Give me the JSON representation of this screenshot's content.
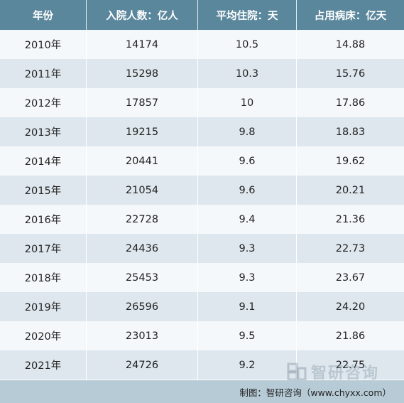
{
  "header": {
    "year": "年份",
    "admissions": "入院人数：亿人",
    "avg_stay": "平均住院：天",
    "bed_days": "占用病床：亿天"
  },
  "rows": [
    {
      "year": "2010年",
      "admissions": "14174",
      "avg_stay": "10.5",
      "bed_days": "14.88"
    },
    {
      "year": "2011年",
      "admissions": "15298",
      "avg_stay": "10.3",
      "bed_days": "15.76"
    },
    {
      "year": "2012年",
      "admissions": "17857",
      "avg_stay": "10",
      "bed_days": "17.86"
    },
    {
      "year": "2013年",
      "admissions": "19215",
      "avg_stay": "9.8",
      "bed_days": "18.83"
    },
    {
      "year": "2014年",
      "admissions": "20441",
      "avg_stay": "9.6",
      "bed_days": "19.62"
    },
    {
      "year": "2015年",
      "admissions": "21054",
      "avg_stay": "9.6",
      "bed_days": "20.21"
    },
    {
      "year": "2016年",
      "admissions": "22728",
      "avg_stay": "9.4",
      "bed_days": "21.36"
    },
    {
      "year": "2017年",
      "admissions": "24436",
      "avg_stay": "9.3",
      "bed_days": "22.73"
    },
    {
      "year": "2018年",
      "admissions": "25453",
      "avg_stay": "9.3",
      "bed_days": "23.67"
    },
    {
      "year": "2019年",
      "admissions": "26596",
      "avg_stay": "9.1",
      "bed_days": "24.20"
    },
    {
      "year": "2020年",
      "admissions": "23013",
      "avg_stay": "9.5",
      "bed_days": "21.86"
    },
    {
      "year": "2021年",
      "admissions": "24726",
      "avg_stay": "9.2",
      "bed_days": "22.75"
    }
  ],
  "footer": {
    "source": "制图：智研咨询（www.chyxx.com）"
  },
  "watermark": {
    "text": "智研咨询"
  },
  "colors": {
    "header_bg": "#5b879c",
    "row_odd": "#f5f8fa",
    "row_even": "#dee7ed",
    "footer_bg": "#b7cbd6"
  }
}
